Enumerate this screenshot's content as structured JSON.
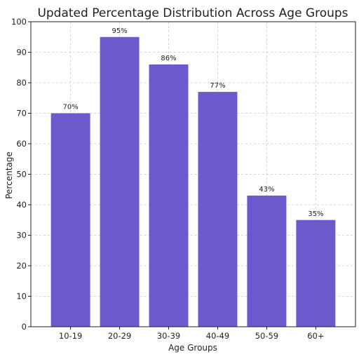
{
  "chart_data": {
    "type": "bar",
    "title": "Updated Percentage Distribution Across Age Groups",
    "xlabel": "Age Groups",
    "ylabel": "Percentage",
    "categories": [
      "10-19",
      "20-29",
      "30-39",
      "40-49",
      "50-59",
      "60+"
    ],
    "values": [
      70,
      95,
      86,
      77,
      43,
      35
    ],
    "data_labels": [
      "70%",
      "95%",
      "86%",
      "77%",
      "43%",
      "35%"
    ],
    "ylim": [
      0,
      100
    ],
    "yticks": [
      0,
      10,
      20,
      30,
      40,
      50,
      60,
      70,
      80,
      90,
      100
    ],
    "ytick_labels": [
      "0",
      "10",
      "20",
      "30",
      "40",
      "50",
      "60",
      "70",
      "80",
      "90",
      "100"
    ],
    "grid": true,
    "bar_color": "#6a5acd"
  }
}
